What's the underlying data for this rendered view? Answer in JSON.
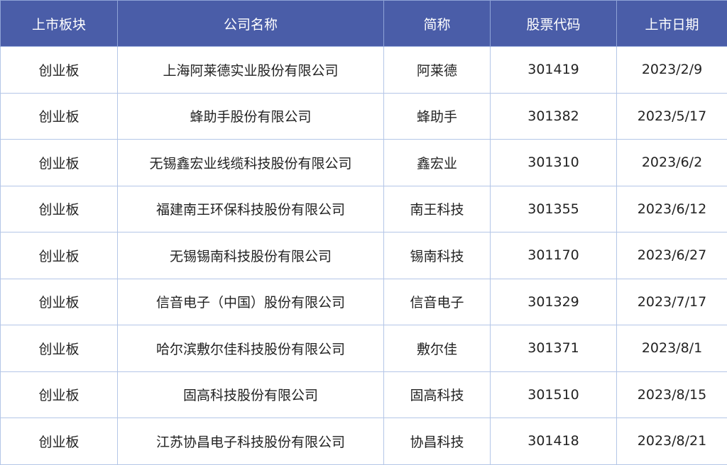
{
  "header_color": "#4a5da8",
  "columns": [
    "上市板块",
    "公司名称",
    "简称",
    "股票代码",
    "上市日期"
  ],
  "rows": [
    [
      "创业板",
      "上海阿莱德实业股份有限公司",
      "阿莱德",
      "301419",
      "2023/2/9"
    ],
    [
      "创业板",
      "蜂助手股份有限公司",
      "蜂助手",
      "301382",
      "2023/5/17"
    ],
    [
      "创业板",
      "无锡鑫宏业线缆科技股份有限公司",
      "鑫宏业",
      "301310",
      "2023/6/2"
    ],
    [
      "创业板",
      "福建南王环保科技股份有限公司",
      "南王科技",
      "301355",
      "2023/6/12"
    ],
    [
      "创业板",
      "无锡锡南科技股份有限公司",
      "锡南科技",
      "301170",
      "2023/6/27"
    ],
    [
      "创业板",
      "信音电子（中国）股份有限公司",
      "信音电子",
      "301329",
      "2023/7/17"
    ],
    [
      "创业板",
      "哈尔滨敷尔佳科技股份有限公司",
      "敷尔佳",
      "301371",
      "2023/8/1"
    ],
    [
      "创业板",
      "固高科技股份有限公司",
      "固高科技",
      "301510",
      "2023/8/15"
    ],
    [
      "创业板",
      "江苏协昌电子科技股份有限公司",
      "协昌科技",
      "301418",
      "2023/8/21"
    ]
  ]
}
